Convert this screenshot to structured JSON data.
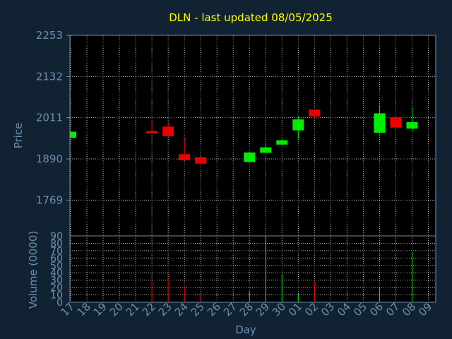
{
  "chart_data": {
    "type": "candlestick",
    "title": "DLN - last updated 08/05/2025",
    "xlabel": "Day",
    "ylabel": "Price",
    "vol_label": "Volume (0000)",
    "price_ticks": [
      2253,
      2132,
      2011,
      1890,
      1769
    ],
    "price_range": [
      1664,
      2253
    ],
    "volume_ticks": [
      0,
      10,
      20,
      30,
      40,
      50,
      60,
      70,
      80,
      90
    ],
    "volume_range": [
      0,
      90
    ],
    "grid": true,
    "colors": {
      "up": "#00ee00",
      "down": "#ee0000",
      "background": "#112233",
      "plot": "#000000",
      "grid": "#b0b0b0",
      "title": "#ffff00",
      "axis_text": "#6f8fb0"
    },
    "days": [
      "17",
      "18",
      "19",
      "20",
      "21",
      "22",
      "23",
      "24",
      "25",
      "26",
      "27",
      "28",
      "29",
      "30",
      "01",
      "02",
      "03",
      "04",
      "05",
      "06",
      "07",
      "08",
      "09"
    ],
    "candles": [
      {
        "day": "17",
        "open": 1952,
        "close": 1970,
        "high": 1970,
        "low": 1952,
        "volume": 0
      },
      {
        "day": "22",
        "open": 1972,
        "close": 1965,
        "high": 2003,
        "low": 1965,
        "volume": 28
      },
      {
        "day": "23",
        "open": 1985,
        "close": 1957,
        "high": 1997,
        "low": 1953,
        "volume": 32
      },
      {
        "day": "24",
        "open": 1904,
        "close": 1886,
        "high": 1955,
        "low": 1886,
        "volume": 22
      },
      {
        "day": "25",
        "open": 1895,
        "close": 1876,
        "high": 1895,
        "low": 1876,
        "volume": 10
      },
      {
        "day": "28",
        "open": 1881,
        "close": 1909,
        "high": 1909,
        "low": 1881,
        "volume": 15
      },
      {
        "day": "29",
        "open": 1908,
        "close": 1924,
        "high": 1934,
        "low": 1908,
        "volume": 90
      },
      {
        "day": "30",
        "open": 1932,
        "close": 1945,
        "high": 1945,
        "low": 1932,
        "volume": 37
      },
      {
        "day": "01",
        "open": 1974,
        "close": 2006,
        "high": 2016,
        "low": 1949,
        "volume": 12
      },
      {
        "day": "02",
        "open": 2035,
        "close": 2015,
        "high": 2035,
        "low": 2010,
        "volume": 28
      },
      {
        "day": "06",
        "open": 1967,
        "close": 2024,
        "high": 2049,
        "low": 1967,
        "volume": 20
      },
      {
        "day": "07",
        "open": 2012,
        "close": 1982,
        "high": 2012,
        "low": 1972,
        "volume": 24
      },
      {
        "day": "08",
        "open": 1979,
        "close": 1998,
        "high": 2042,
        "low": 1970,
        "volume": 68
      }
    ]
  }
}
